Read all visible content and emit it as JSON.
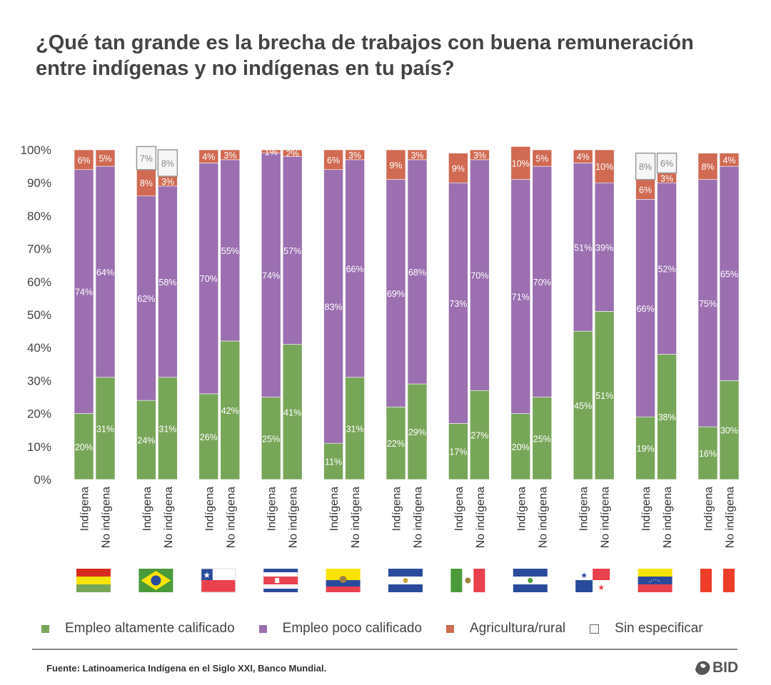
{
  "title": "¿Qué tan grande es la brecha de trabajos con buena remuneración entre indígenas y no indígenas en tu país?",
  "source": "Fuente: Latinoamerica Indígena en el Siglo XXI, Banco Mundial.",
  "logo": "BID",
  "chart_data": {
    "type": "bar",
    "stacked": true,
    "ylim": [
      0,
      100
    ],
    "yticks": [
      "0%",
      "10%",
      "20%",
      "30%",
      "40%",
      "50%",
      "60%",
      "70%",
      "80%",
      "90%",
      "100%"
    ],
    "bar_labels": [
      "Indígena",
      "No indígena"
    ],
    "series": [
      {
        "name": "Empleo altamente calificado",
        "color": "#78a659"
      },
      {
        "name": "Empleo poco calificado",
        "color": "#9b6fb0"
      },
      {
        "name": "Agricultura/rural",
        "color": "#d06a52"
      },
      {
        "name": "Sin especificar",
        "color": "#f5f6f5"
      }
    ],
    "groups": [
      {
        "flag": "bolivia",
        "bars": [
          [
            20,
            74,
            6,
            0
          ],
          [
            31,
            64,
            5,
            0
          ]
        ]
      },
      {
        "flag": "brazil",
        "bars": [
          [
            24,
            62,
            8,
            7
          ],
          [
            31,
            58,
            3,
            8
          ]
        ]
      },
      {
        "flag": "chile",
        "bars": [
          [
            26,
            70,
            4,
            0
          ],
          [
            42,
            55,
            3,
            0
          ]
        ]
      },
      {
        "flag": "costa-rica",
        "bars": [
          [
            25,
            74,
            1,
            0
          ],
          [
            41,
            57,
            2,
            0
          ]
        ]
      },
      {
        "flag": "ecuador",
        "bars": [
          [
            11,
            83,
            6,
            0
          ],
          [
            31,
            66,
            3,
            0
          ]
        ]
      },
      {
        "flag": "el-salvador",
        "bars": [
          [
            22,
            69,
            9,
            0
          ],
          [
            29,
            68,
            3,
            0
          ]
        ]
      },
      {
        "flag": "mexico",
        "bars": [
          [
            17,
            73,
            9,
            0
          ],
          [
            27,
            70,
            3,
            0
          ]
        ]
      },
      {
        "flag": "nicaragua",
        "bars": [
          [
            20,
            71,
            10,
            0
          ],
          [
            25,
            70,
            5,
            0
          ]
        ]
      },
      {
        "flag": "panama",
        "bars": [
          [
            45,
            51,
            4,
            0
          ],
          [
            51,
            39,
            10,
            0
          ]
        ]
      },
      {
        "flag": "venezuela",
        "bars": [
          [
            19,
            66,
            6,
            8
          ],
          [
            38,
            52,
            3,
            6
          ]
        ]
      },
      {
        "flag": "peru",
        "bars": [
          [
            16,
            75,
            8,
            0
          ],
          [
            30,
            65,
            4,
            0
          ]
        ]
      }
    ]
  }
}
